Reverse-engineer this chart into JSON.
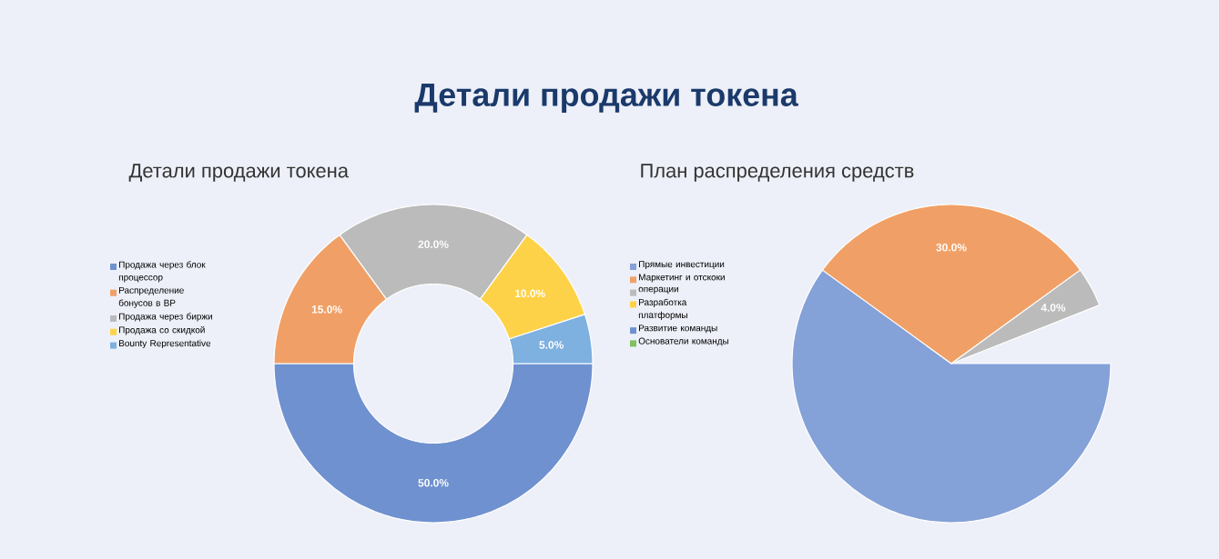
{
  "chart_data": [
    {
      "type": "other",
      "title": "Детали продажи токена"
    },
    {
      "type": "donut",
      "title": "Детали продажи токена",
      "categories": [
        "Продажа через блок процессор",
        "Распределение бонусов в BP",
        "Продажа через биржи",
        "Продажа со скидкой",
        "Bounty Representative"
      ],
      "values": [
        50,
        15,
        20,
        10,
        5
      ],
      "colors": [
        "#6f91d0",
        "#f0a066",
        "#bbbbbb",
        "#fed248",
        "#7eb0e0"
      ],
      "value_labels": [
        "50.0%",
        "15.0%",
        "20.0%",
        "10.0%",
        "5.0%"
      ],
      "legend": "left"
    },
    {
      "type": "pie",
      "title": "План распределения средств",
      "categories": [
        "Прямые инвестиции",
        "Маркетинг и отскоки",
        "операции",
        "Разработка платформы",
        "Развитие команды",
        "Основатели команды"
      ],
      "values": [
        60,
        30,
        4,
        null,
        null,
        null
      ],
      "colors": [
        "#84a1d8",
        "#f0a066",
        "#bbbbbb",
        "#fed248",
        "#6f91d0",
        "#7fbf5f"
      ],
      "value_labels": [
        null,
        "30.0%",
        "4.0%",
        null,
        null,
        null
      ],
      "legend": "left"
    }
  ]
}
